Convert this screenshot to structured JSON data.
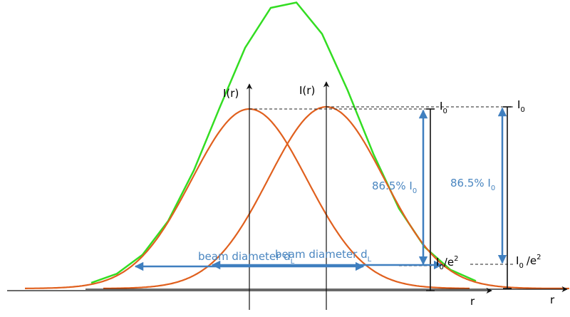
{
  "axes": [
    {
      "y_label": "I(r)",
      "x_label": "r"
    },
    {
      "y_label": "I(r)",
      "x_label": "r"
    }
  ],
  "peak_labels": [
    {
      "symbol": "I",
      "sub": "0"
    },
    {
      "symbol": "I",
      "sub": "0"
    }
  ],
  "fraction_labels": [
    {
      "text": "86.5% I",
      "sub": "0"
    },
    {
      "text": "86.5% I",
      "sub": "0"
    }
  ],
  "edge_labels": [
    {
      "symbol": "I",
      "sub": "0",
      "tail": "/e",
      "sup": "2"
    },
    {
      "symbol": "I",
      "sub": "0",
      "tail": "/e",
      "sup": "2"
    }
  ],
  "diameter_labels": [
    {
      "text": "beam diameter d",
      "sub": "L"
    },
    {
      "text": "beam diameter d",
      "sub": "L"
    }
  ]
}
